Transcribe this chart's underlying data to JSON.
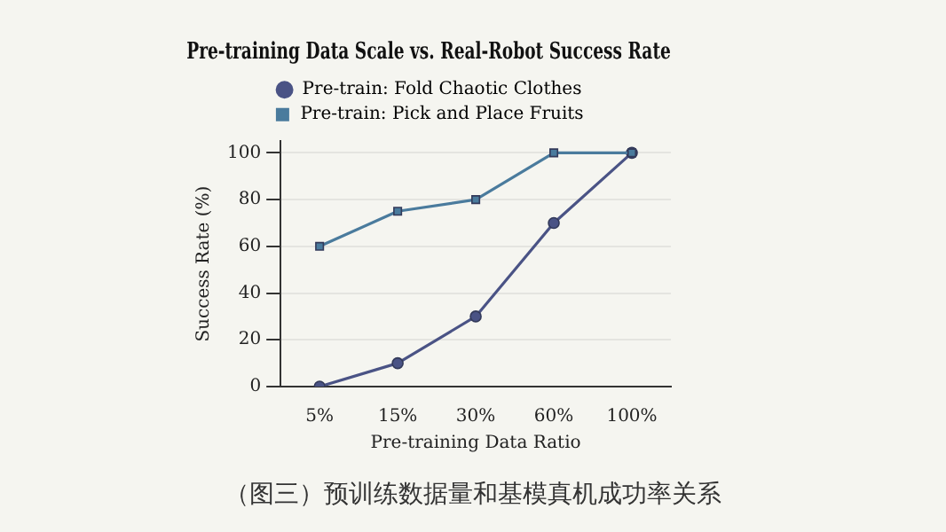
{
  "chart_data": {
    "type": "line",
    "title": "Pre-training Data Scale vs. Real-Robot Success Rate",
    "xlabel": "Pre-training Data Ratio",
    "ylabel": "Success Rate (%)",
    "categories": [
      "5%",
      "15%",
      "30%",
      "60%",
      "100%"
    ],
    "series": [
      {
        "name": "Pre-train: Fold Chaotic Clothes",
        "color": "#4a5385",
        "marker": "circle",
        "values": [
          0,
          10,
          30,
          70,
          100
        ]
      },
      {
        "name": "Pre-train: Pick and Place Fruits",
        "color": "#4a7b9d",
        "marker": "square",
        "values": [
          60,
          75,
          80,
          100,
          100
        ]
      }
    ],
    "ylim": [
      0,
      105
    ],
    "yticks": [
      0,
      20,
      40,
      60,
      80,
      100
    ],
    "grid": "y",
    "legend": "top",
    "annotations": [
      "（图三）预训练数据量和基模真机成功率关系"
    ]
  }
}
